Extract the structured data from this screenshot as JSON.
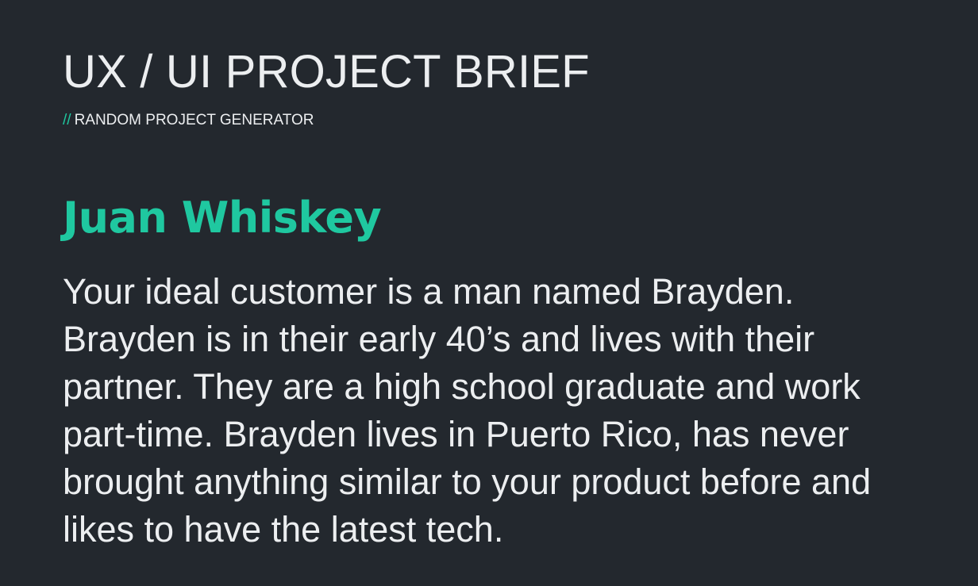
{
  "header": {
    "title": "UX / UI PROJECT BRIEF",
    "subtitle_prefix": "//",
    "subtitle": "RANDOM PROJECT GENERATOR"
  },
  "brief": {
    "company_name": "Juan Whiskey",
    "description": "Your ideal customer is a man named Brayden. Brayden is in their early 40’s and lives with their partner. They are a high school graduate and work part-time. Brayden lives in Puerto Rico, has never brought anything similar to your product before and likes to have the latest tech."
  },
  "colors": {
    "background": "#23282e",
    "accent": "#1fc8a0",
    "text": "#eceef0"
  }
}
